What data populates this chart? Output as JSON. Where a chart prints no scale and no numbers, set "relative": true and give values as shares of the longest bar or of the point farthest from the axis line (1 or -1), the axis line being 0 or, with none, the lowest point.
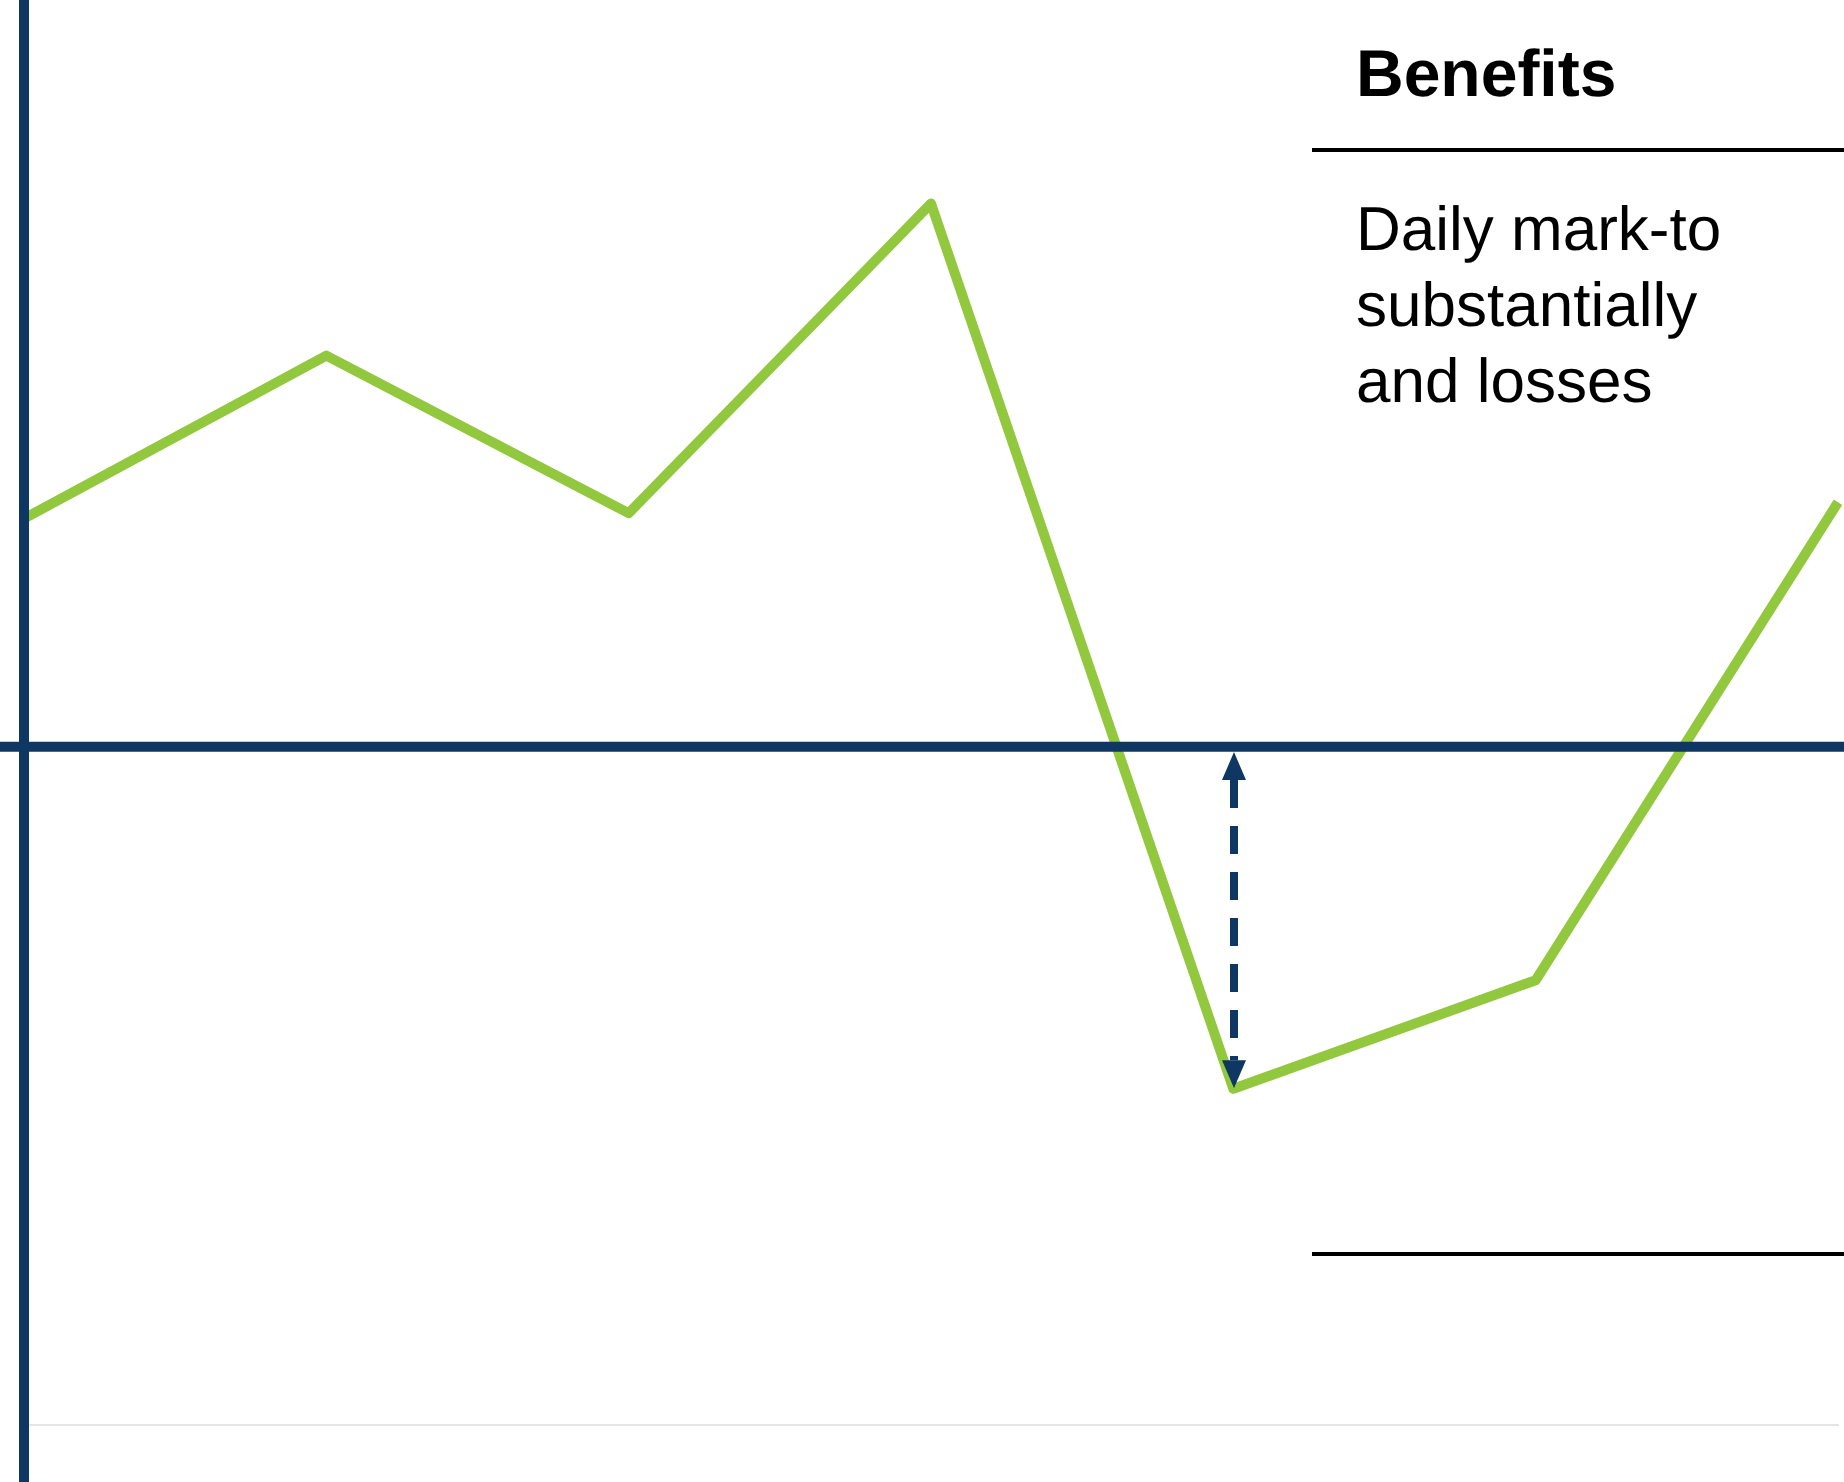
{
  "chart_data": {
    "type": "line",
    "relative": true,
    "categories": [
      null,
      null,
      null,
      null,
      null,
      null,
      null
    ],
    "series": [
      {
        "color": "#92c83e",
        "values": [
          0.42,
          0.72,
          0.43,
          1,
          -0.63,
          -0.43,
          0.45
        ]
      }
    ],
    "marker": "none",
    "line_style": "solid",
    "legend": false,
    "annotations": [
      "Benefits",
      "Daily mark-to",
      "substantially",
      "and losses"
    ]
  }
}
